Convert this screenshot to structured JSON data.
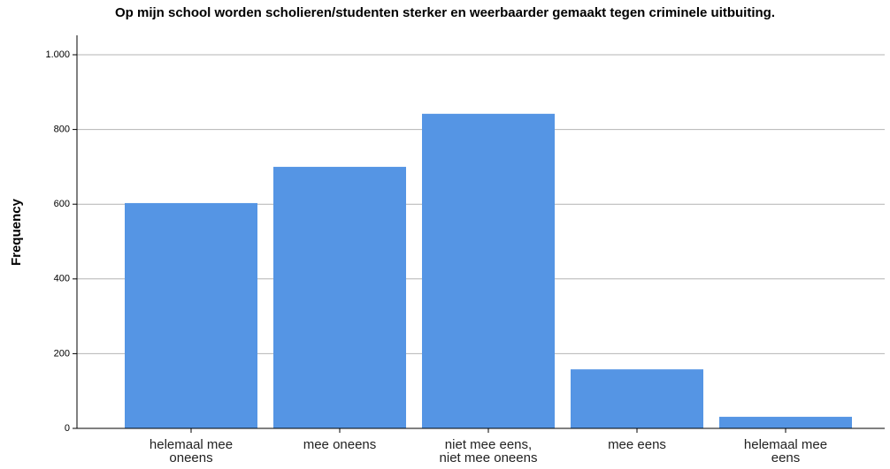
{
  "chart_data": {
    "type": "bar",
    "title": "Op mijn school worden scholieren/studenten sterker en weerbaarder gemaakt tegen criminele uitbuiting.",
    "y_label": "Frequency",
    "categories": [
      "helemaal mee oneens",
      "mee oneens",
      "niet mee eens, niet mee oneens",
      "mee eens",
      "helemaal mee eens"
    ],
    "values": [
      603,
      700,
      842,
      158,
      31
    ],
    "color": "#5595e4",
    "ylim": [
      0,
      1052
    ],
    "yticks": [
      0,
      200,
      400,
      600,
      800,
      {
        "value": 1000,
        "label": "1.000"
      }
    ],
    "grid": true
  }
}
